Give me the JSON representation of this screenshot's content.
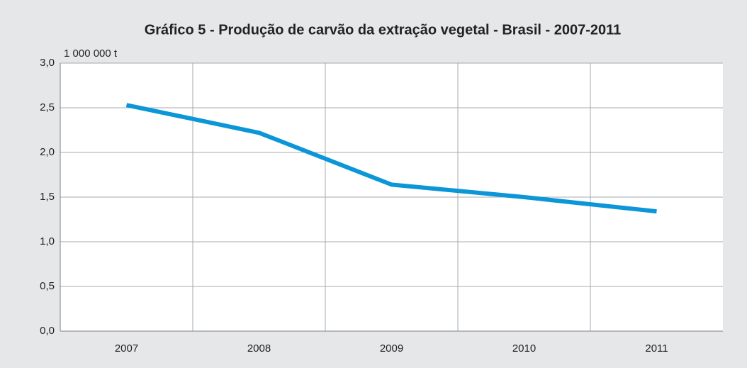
{
  "chart_data": {
    "type": "line",
    "title": "Gráfico 5 - Produção de carvão da extração vegetal - Brasil - 2007-2011",
    "y_label": "1 000 000 t",
    "categories": [
      "2007",
      "2008",
      "2009",
      "2010",
      "2011"
    ],
    "series": [
      {
        "name": "Produção de carvão",
        "color": "#0b96d8",
        "values": [
          2.53,
          2.22,
          1.64,
          1.5,
          1.34
        ]
      }
    ],
    "ylim": [
      0,
      3
    ],
    "yticks": [
      {
        "value": 0,
        "label": "0,0"
      },
      {
        "value": 0.5,
        "label": "0,5"
      },
      {
        "value": 1,
        "label": "1,0"
      },
      {
        "value": 1.5,
        "label": "1,5"
      },
      {
        "value": 2,
        "label": "2,0"
      },
      {
        "value": 2.5,
        "label": "2,5"
      },
      {
        "value": 3,
        "label": "3,0"
      }
    ],
    "grid": true
  }
}
